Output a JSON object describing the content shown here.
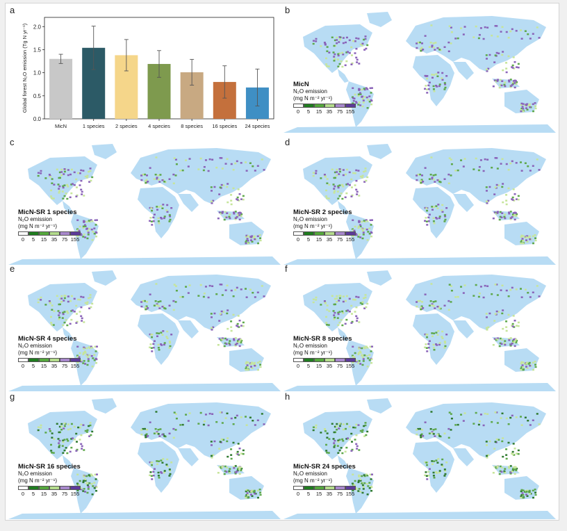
{
  "panels": {
    "a": "a",
    "b": "b",
    "c": "c",
    "d": "d",
    "e": "e",
    "f": "f",
    "g": "g",
    "h": "h"
  },
  "chart_data": {
    "type": "bar",
    "ylabel": "Global forest N₂O emission (Tg N yr⁻¹)",
    "ylim": [
      0,
      2.2
    ],
    "yticks": [
      "0.0",
      "0.5",
      "1.0",
      "1.5",
      "2.0"
    ],
    "categories": [
      "MicN",
      "1 species",
      "2 species",
      "4 species",
      "8 species",
      "16 species",
      "24 species"
    ],
    "values": [
      1.3,
      1.54,
      1.38,
      1.19,
      1.01,
      0.8,
      0.68
    ],
    "errors": [
      0.1,
      0.47,
      0.34,
      0.29,
      0.28,
      0.35,
      0.4
    ],
    "colors": [
      "#c8c8c8",
      "#2c5a66",
      "#f5d68a",
      "#7e9a4e",
      "#c8a982",
      "#c4703c",
      "#3f8fc4"
    ],
    "grid": false
  },
  "maps": [
    {
      "title": "MicN"
    },
    {
      "title": "MicN-SR 1 species"
    },
    {
      "title": "MicN-SR 2 species"
    },
    {
      "title": "MicN-SR 4 species"
    },
    {
      "title": "MicN-SR 8 species"
    },
    {
      "title": "MicN-SR 16 species"
    },
    {
      "title": "MicN-SR 24 species"
    }
  ],
  "legend": {
    "line1": "N₂O emission",
    "line2": "(mg N m⁻² yr⁻¹)",
    "ticks": [
      "0",
      "5",
      "15",
      "35",
      "75",
      "155"
    ],
    "colors": [
      "#ffffff",
      "#1f7d1f",
      "#55a83d",
      "#b4dc8c",
      "#a888cc",
      "#5d3a9b"
    ]
  },
  "map_colors": {
    "land": "#b8dcf4",
    "green": "#5ea84a",
    "light": "#c6e59a",
    "purple": "#8a63b8",
    "dark": "#2f7a2f"
  }
}
